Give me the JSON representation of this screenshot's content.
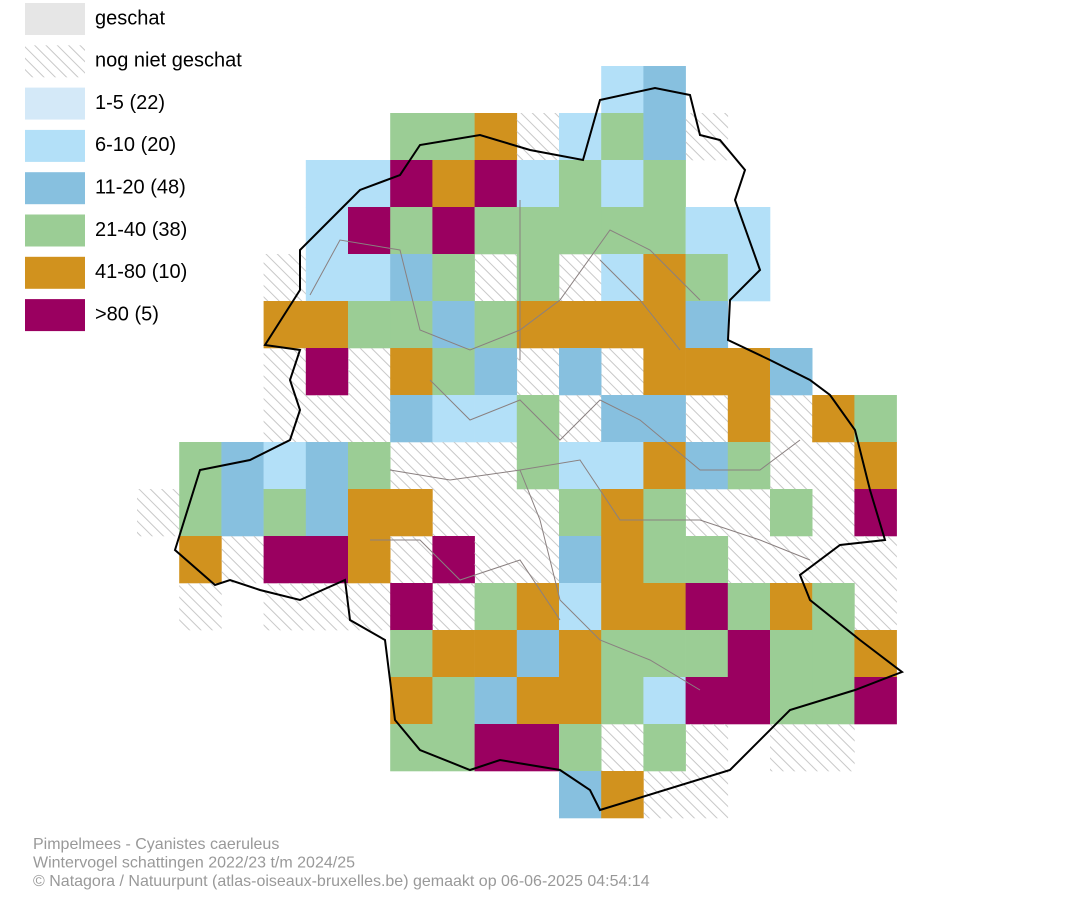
{
  "legend": {
    "items": [
      {
        "label": "geschat",
        "color": "#e6e6e6"
      },
      {
        "label": "nog niet geschat",
        "color": "#c8c8c8"
      },
      {
        "label": "1-5 (22)",
        "color": "#d4e9f8"
      },
      {
        "label": "6-10 (20)",
        "color": "#b3e0f8"
      },
      {
        "label": "11-20 (48)",
        "color": "#87c0df"
      },
      {
        "label": "21-40 (38)",
        "color": "#9bcd95"
      },
      {
        "label": "41-80 (10)",
        "color": "#d1921e"
      },
      {
        "label": ">80 (5)",
        "color": "#9a0060"
      }
    ]
  },
  "footer": {
    "lines": [
      "Pimpelmees - Cyanistes caeruleus",
      "Wintervogel schattingen 2022/23 t/m 2024/25",
      "© Natagora / Natuurpunt (atlas-oiseaux-bruxelles.be) gemaakt op 06-06-2025 04:54:14"
    ]
  }
}
